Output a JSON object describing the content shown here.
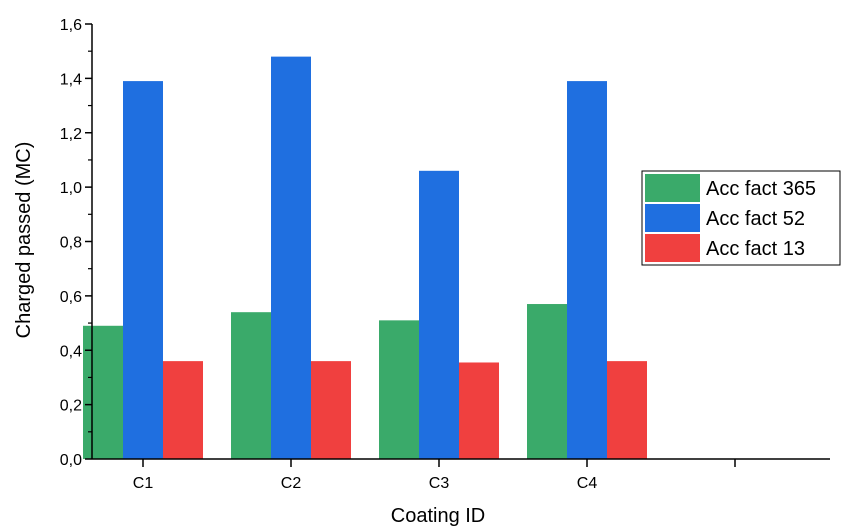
{
  "chart_data": {
    "type": "bar",
    "categories": [
      "C1",
      "C2",
      "C3",
      "C4"
    ],
    "series": [
      {
        "name": "Acc fact 365",
        "color": "#3aaa6a",
        "values": [
          0.49,
          0.54,
          0.51,
          0.57
        ]
      },
      {
        "name": "Acc fact 52",
        "color": "#1f6fe0",
        "values": [
          1.39,
          1.48,
          1.06,
          1.39
        ]
      },
      {
        "name": "Acc fact 13",
        "color": "#f0403f",
        "values": [
          0.36,
          0.36,
          0.355,
          0.36
        ]
      }
    ],
    "xlabel": "Coating ID",
    "ylabel": "Charged passed (MC)",
    "ylim": [
      0,
      1.6
    ],
    "yticks": [
      "0,0",
      "0,2",
      "0,4",
      "0,6",
      "0,8",
      "1,0",
      "1,2",
      "1,4",
      "1,6"
    ],
    "grid": false,
    "legend_position": "right"
  }
}
